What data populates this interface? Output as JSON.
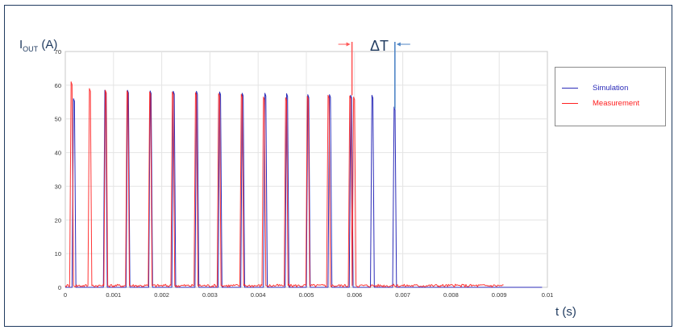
{
  "chart_data": {
    "type": "line",
    "ylabel_main": "I",
    "ylabel_sub": "OUT",
    "ylabel_unit": "(A)",
    "xlabel": "t (s)",
    "annotation": "ΔT",
    "xlim": [
      0,
      0.01
    ],
    "ylim": [
      0,
      70
    ],
    "x_ticks": [
      "0",
      "0.001",
      "0.002",
      "0.003",
      "0.004",
      "0.005",
      "0.006",
      "0.007",
      "0.008",
      "0.009",
      "0.01"
    ],
    "y_ticks": [
      "0",
      "10",
      "20",
      "30",
      "40",
      "50",
      "60",
      "70"
    ],
    "grid": true,
    "legend_position": "right",
    "series": [
      {
        "name": "Simulation",
        "color": "#2b2bb8",
        "baseline": 0,
        "pulse_peaks_t": [
          0.00017,
          0.00082,
          0.00129,
          0.00176,
          0.00224,
          0.00272,
          0.0032,
          0.00367,
          0.00414,
          0.00459,
          0.00503,
          0.00548,
          0.00592,
          0.00636,
          0.00682
        ],
        "pulse_peaks_i": [
          56,
          58.5,
          58.5,
          58.3,
          58.2,
          58.2,
          58,
          57.6,
          57.6,
          57.5,
          57.2,
          57.2,
          57,
          57,
          53.5
        ],
        "end_t": 0.0099
      },
      {
        "name": "Measurement",
        "color": "#ff2020",
        "baseline": 0.5,
        "pulse_peaks_t": [
          0.00012,
          0.0005,
          0.00083,
          0.00128,
          0.00175,
          0.00222,
          0.0027,
          0.00318,
          0.00365,
          0.00411,
          0.00457,
          0.00502,
          0.00545,
          0.0059,
          0.00598
        ],
        "pulse_peaks_i": [
          61,
          59,
          58.5,
          58.3,
          58,
          58,
          57.8,
          57.5,
          57.3,
          56.5,
          56.3,
          56.7,
          57,
          56.8,
          56.5
        ],
        "end_t": 0.0091
      }
    ]
  }
}
